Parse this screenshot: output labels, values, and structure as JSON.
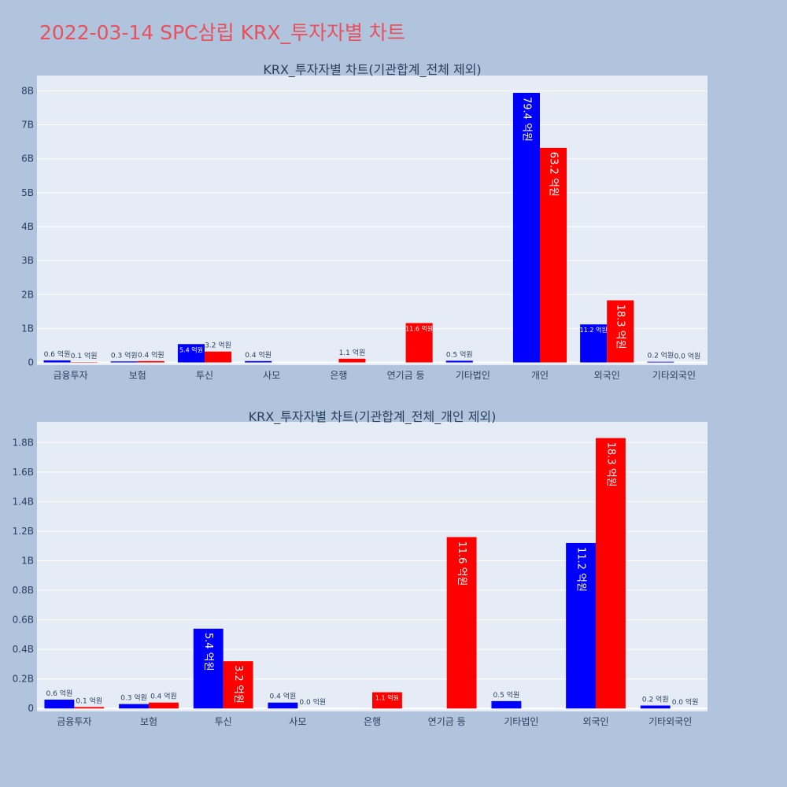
{
  "page": {
    "title": "2022-03-14 SPC삼립 KRX_투자자별 차트"
  },
  "colors": {
    "sell": "#0000ff",
    "buy": "#ff0000",
    "title": "#e8505b",
    "plot_bg": "#e5ecf6",
    "page_bg": "#b0c4de"
  },
  "chart_data": [
    {
      "type": "bar",
      "title": "KRX_투자자별 차트(기관합계_전체 제외)",
      "categories": [
        "금융투자",
        "보험",
        "투신",
        "사모",
        "은행",
        "연기금 등",
        "기타법인",
        "개인",
        "외국인",
        "기타외국인"
      ],
      "series": [
        {
          "color": "#0000ff",
          "values": [
            60000000,
            30000000,
            540000000,
            40000000,
            null,
            null,
            50000000,
            7940000000,
            1120000000,
            20000000
          ],
          "labels": [
            "0.6 억원",
            "0.3 억원",
            "5.4 억원",
            "0.4 억원",
            "",
            "",
            "0.5 억원",
            "79.4 억원",
            "11.2 억원",
            "0.2 억원"
          ]
        },
        {
          "color": "#ff0000",
          "values": [
            10000000,
            40000000,
            320000000,
            null,
            110000000,
            1160000000,
            null,
            6320000000,
            1830000000,
            0
          ],
          "labels": [
            "0.1 억원",
            "0.4 억원",
            "3.2 억원",
            "",
            "1.1 억원",
            "11.6 억원",
            "",
            "63.2 억원",
            "18.3 억원",
            "0.0 억원"
          ]
        }
      ],
      "ylim": [
        -80000000,
        8450000000
      ],
      "yticks": [
        0,
        1000000000,
        2000000000,
        3000000000,
        4000000000,
        5000000000,
        6000000000,
        7000000000,
        8000000000
      ],
      "ytick_labels": [
        "0",
        "1B",
        "2B",
        "3B",
        "4B",
        "5B",
        "6B",
        "7B",
        "8B"
      ],
      "grid": true,
      "xlabel": "",
      "ylabel": ""
    },
    {
      "type": "bar",
      "title": "KRX_투자자별 차트(기관합계_전체_개인 제외)",
      "categories": [
        "금융투자",
        "보험",
        "투신",
        "사모",
        "은행",
        "연기금 등",
        "기타법인",
        "외국인",
        "기타외국인"
      ],
      "series": [
        {
          "color": "#0000ff",
          "values": [
            60000000,
            30000000,
            540000000,
            40000000,
            null,
            null,
            50000000,
            1120000000,
            20000000
          ],
          "labels": [
            "0.6 억원",
            "0.3 억원",
            "5.4 억원",
            "0.4 억원",
            "",
            "",
            "0.5 억원",
            "11.2 억원",
            "0.2 억원"
          ]
        },
        {
          "color": "#ff0000",
          "values": [
            10000000,
            40000000,
            320000000,
            0,
            110000000,
            1160000000,
            null,
            1830000000,
            0
          ],
          "labels": [
            "0.1 억원",
            "0.4 억원",
            "3.2 억원",
            "0.0 억원",
            "1.1 억원",
            "11.6 억원",
            "",
            "18.3 억원",
            "0.0 억원"
          ]
        }
      ],
      "ylim": [
        -20000000,
        1940000000
      ],
      "yticks": [
        0,
        200000000,
        400000000,
        600000000,
        800000000,
        1000000000,
        1200000000,
        1400000000,
        1600000000,
        1800000000
      ],
      "ytick_labels": [
        "0",
        "0.2B",
        "0.4B",
        "0.6B",
        "0.8B",
        "1B",
        "1.2B",
        "1.4B",
        "1.6B",
        "1.8B"
      ],
      "grid": true,
      "xlabel": "",
      "ylabel": ""
    }
  ]
}
